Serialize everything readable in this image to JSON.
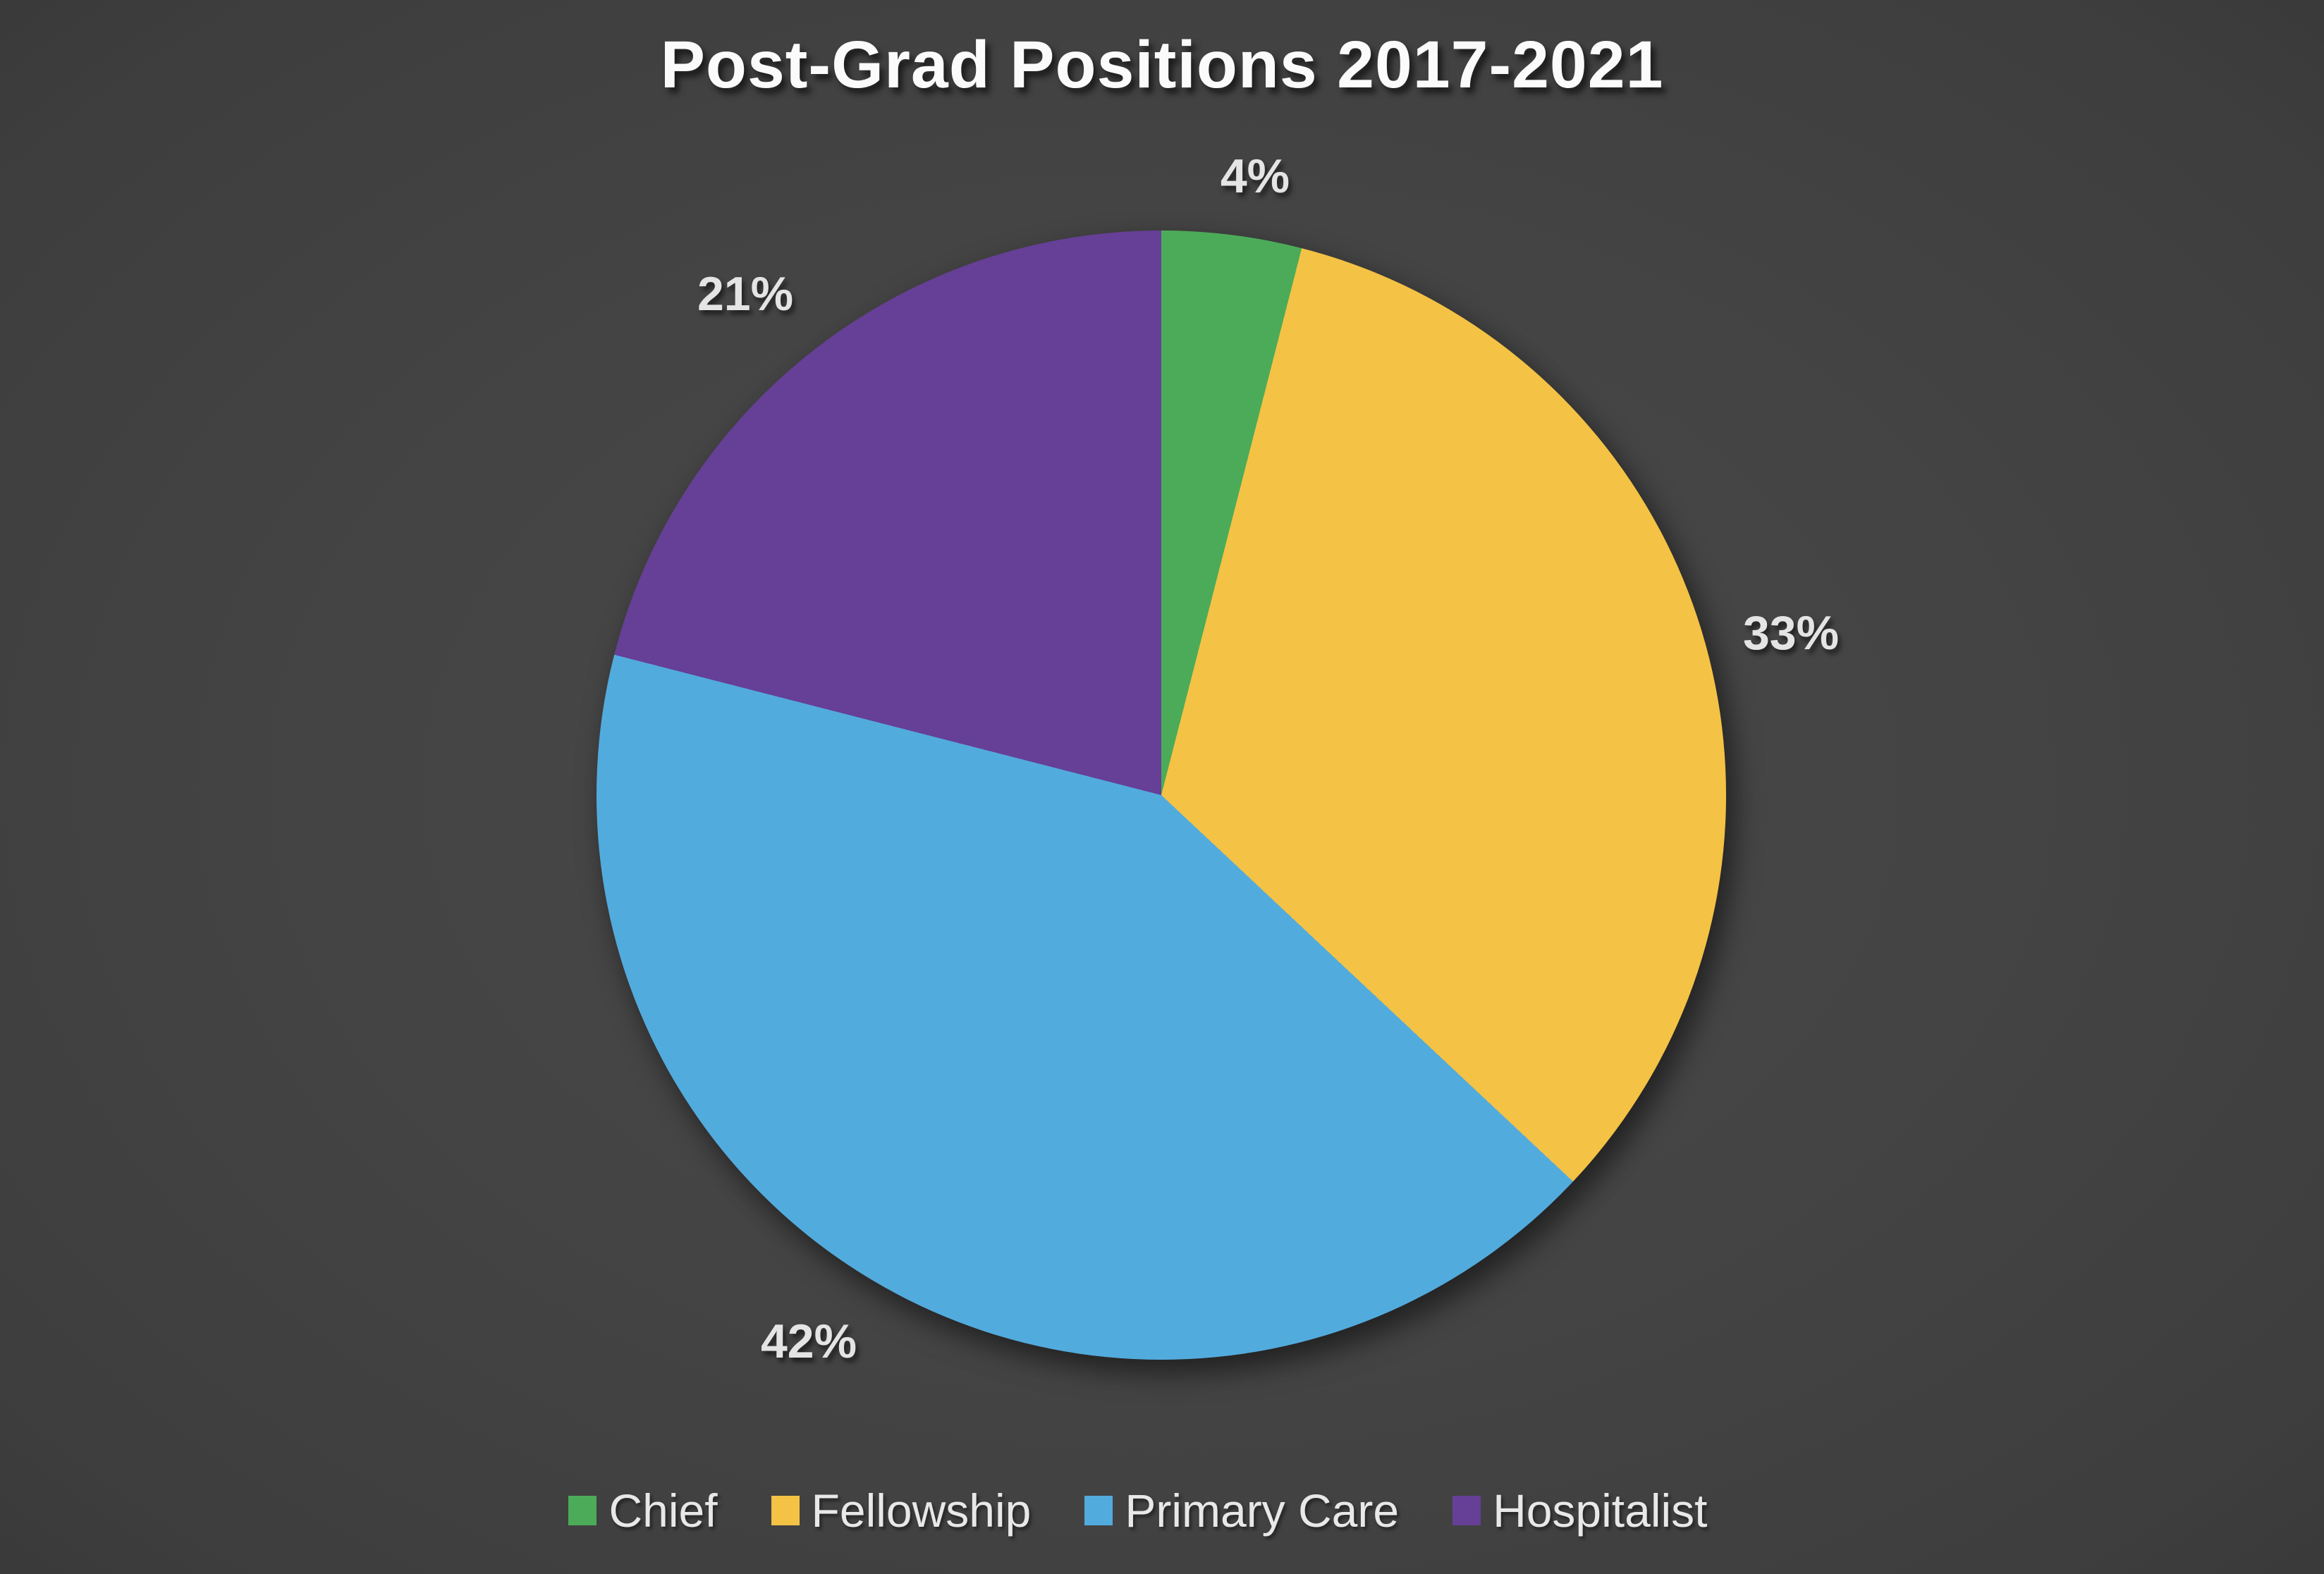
{
  "title": "Post-Grad Positions 2017-2021",
  "background": {
    "center_color": "#494949",
    "edge_color": "#211d1f"
  },
  "text_colors": {
    "title": "#fbfbfb",
    "data_labels": "#e4e4e4",
    "legend": "#e8e8e8"
  },
  "chart_data": {
    "type": "pie",
    "title": "Post-Grad Positions 2017-2021",
    "start_angle_deg": 0,
    "direction": "clockwise",
    "legend_position": "bottom",
    "slices": [
      {
        "label": "Chief",
        "value_pct": 4,
        "data_label": "4%",
        "color": "#4cab58"
      },
      {
        "label": "Fellowship",
        "value_pct": 33,
        "data_label": "33%",
        "color": "#f4c244"
      },
      {
        "label": "Primary Care",
        "value_pct": 42,
        "data_label": "42%",
        "color": "#52abdd"
      },
      {
        "label": "Hospitalist",
        "value_pct": 21,
        "data_label": "21%",
        "color": "#663f97"
      }
    ]
  }
}
